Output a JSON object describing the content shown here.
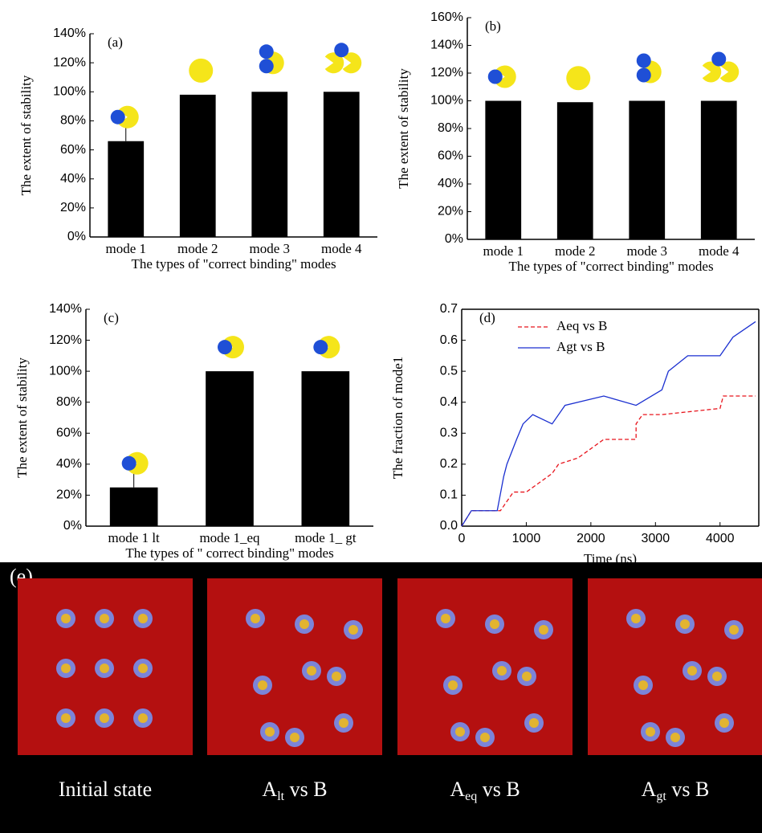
{
  "chart_data": [
    {
      "type": "bar",
      "annotation": "(a)",
      "ylabel": "The extent of stability",
      "xlabel": "The types of  \"correct binding\" modes",
      "categories": [
        "mode 1",
        "mode 2",
        "mode 3",
        "mode 4"
      ],
      "values": [
        66,
        98,
        100,
        100
      ],
      "errors": [
        15,
        null,
        null,
        null
      ],
      "color": "#000000",
      "ylim": [
        0,
        140
      ],
      "yticks": [
        {
          "value": 0,
          "label": "0%"
        },
        {
          "value": 20,
          "label": "20%"
        },
        {
          "value": 40,
          "label": "40%"
        },
        {
          "value": 60,
          "label": "60%"
        },
        {
          "value": 80,
          "label": "80%"
        },
        {
          "value": 100,
          "label": "100%"
        },
        {
          "value": 120,
          "label": "120%"
        },
        {
          "value": 140,
          "label": "140%"
        }
      ]
    },
    {
      "type": "bar",
      "annotation": "(b)",
      "ylabel": "The extent of stability",
      "xlabel": "The types of  \"correct binding\" modes",
      "categories": [
        "mode 1",
        "mode 2",
        "mode 3",
        "mode 4"
      ],
      "values": [
        100,
        99,
        100,
        100
      ],
      "color": "#000000",
      "ylim": [
        0,
        160
      ],
      "yticks": [
        {
          "value": 0,
          "label": "0%"
        },
        {
          "value": 20,
          "label": "20%"
        },
        {
          "value": 40,
          "label": "40%"
        },
        {
          "value": 60,
          "label": "60%"
        },
        {
          "value": 80,
          "label": "80%"
        },
        {
          "value": 100,
          "label": "100%"
        },
        {
          "value": 120,
          "label": "120%"
        },
        {
          "value": 140,
          "label": "140%"
        },
        {
          "value": 160,
          "label": "160%"
        }
      ]
    },
    {
      "type": "bar",
      "annotation": "(c)",
      "ylabel": "The extent of stability",
      "xlabel": "The types of \" correct binding\" modes",
      "categories": [
        "mode 1   lt",
        "mode 1_eq",
        "mode 1_ gt"
      ],
      "values": [
        25,
        100,
        100
      ],
      "errors": [
        12,
        null,
        null
      ],
      "color": "#000000",
      "ylim": [
        0,
        140
      ],
      "yticks": [
        {
          "value": 0,
          "label": "0%"
        },
        {
          "value": 20,
          "label": "20%"
        },
        {
          "value": 40,
          "label": "40%"
        },
        {
          "value": 60,
          "label": "60%"
        },
        {
          "value": 80,
          "label": "80%"
        },
        {
          "value": 100,
          "label": "100%"
        },
        {
          "value": 120,
          "label": "120%"
        },
        {
          "value": 140,
          "label": "140%"
        }
      ]
    },
    {
      "type": "line",
      "annotation": "(d)",
      "ylabel": "The fraction of mode1",
      "xlabel": "Time (ns)",
      "xlim": [
        0,
        4600
      ],
      "xticks": [
        0,
        1000,
        2000,
        3000,
        4000
      ],
      "ylim": [
        0,
        0.7
      ],
      "yticks": [
        {
          "value": 0,
          "label": "0.0"
        },
        0.1,
        0.2,
        0.3,
        0.4,
        0.5,
        0.6,
        0.7
      ],
      "series": [
        {
          "name": "Aeq vs B",
          "color": "#e8141c",
          "dash": true,
          "x": [
            0,
            150,
            600,
            700,
            800,
            1000,
            1400,
            1500,
            1800,
            2200,
            2700,
            2700,
            2800,
            3100,
            4000,
            4050,
            4550
          ],
          "values": [
            0,
            0.05,
            0.05,
            0.08,
            0.11,
            0.11,
            0.17,
            0.2,
            0.22,
            0.28,
            0.28,
            0.33,
            0.36,
            0.36,
            0.38,
            0.42,
            0.42
          ]
        },
        {
          "name": "Agt  vs B",
          "color": "#1a2fd0",
          "dash": false,
          "x": [
            0,
            150,
            550,
            650,
            700,
            850,
            950,
            1100,
            1400,
            1600,
            2200,
            2700,
            3100,
            3200,
            3500,
            4000,
            4200,
            4550
          ],
          "values": [
            0,
            0.05,
            0.05,
            0.16,
            0.2,
            0.28,
            0.33,
            0.36,
            0.33,
            0.39,
            0.42,
            0.39,
            0.44,
            0.5,
            0.55,
            0.55,
            0.61,
            0.66
          ]
        }
      ]
    }
  ],
  "panel_e": {
    "label": "(e)",
    "captions": [
      {
        "main": "Initial state"
      },
      {
        "main": "A",
        "sub": "lt",
        "rest": " vs B"
      },
      {
        "main": "A",
        "sub": "eq",
        "rest": " vs B"
      },
      {
        "main": "A",
        "sub": "gt",
        "rest": " vs B"
      }
    ]
  }
}
